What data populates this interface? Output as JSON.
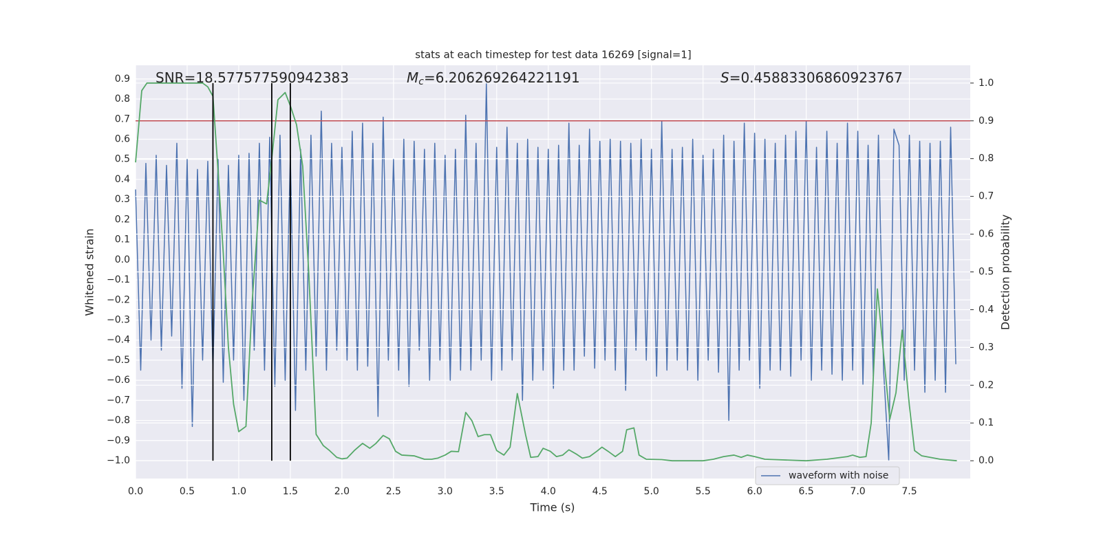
{
  "chart_data": {
    "type": "line",
    "title": "stats at each timestep for test data 16269 [signal=1]",
    "xlabel": "Time (s)",
    "ylabel": "Whitened strain",
    "y2label": "Detection probability",
    "annotations": [
      {
        "symbol": "SNR",
        "italic": false,
        "text": "=18.577577590942383"
      },
      {
        "symbol": "M",
        "subscript": "c",
        "italic": true,
        "text": "=6.206269264221191"
      },
      {
        "symbol": "S",
        "italic": true,
        "text": "=0.45883306860923767"
      }
    ],
    "xlim": [
      0,
      8.09
    ],
    "ylim": [
      -1.089,
      0.968
    ],
    "y2lim": [
      -0.047,
      1.047
    ],
    "xticks": [
      {
        "value": 0,
        "label": "0.0"
      },
      0.5,
      {
        "value": 1,
        "label": "1.0"
      },
      1.5,
      {
        "value": 2,
        "label": "2.0"
      },
      2.5,
      {
        "value": 3,
        "label": "3.0"
      },
      3.5,
      {
        "value": 4,
        "label": "4.0"
      },
      4.5,
      {
        "value": 5,
        "label": "5.0"
      },
      5.5,
      {
        "value": 6,
        "label": "6.0"
      },
      6.5,
      {
        "value": 7,
        "label": "7.0"
      },
      7.5
    ],
    "yticks": [
      0.9,
      0.8,
      0.7,
      0.6,
      0.5,
      0.4,
      0.3,
      0.2,
      0.1,
      {
        "value": 0,
        "label": "0.0"
      },
      {
        "value": -0.1,
        "label": "−0.1"
      },
      {
        "value": -0.2,
        "label": "−0.2"
      },
      {
        "value": -0.3,
        "label": "−0.3"
      },
      {
        "value": -0.4,
        "label": "−0.4"
      },
      {
        "value": -0.5,
        "label": "−0.5"
      },
      {
        "value": -0.6,
        "label": "−0.6"
      },
      {
        "value": -0.7,
        "label": "−0.7"
      },
      {
        "value": -0.8,
        "label": "−0.8"
      },
      {
        "value": -0.9,
        "label": "−0.9"
      },
      {
        "value": -1,
        "label": "−1.0"
      }
    ],
    "y2ticks": [
      {
        "value": 0,
        "label": "0.0"
      },
      0.1,
      0.2,
      0.3,
      0.4,
      0.5,
      0.6,
      0.7,
      0.8,
      0.9,
      {
        "value": 1,
        "label": "1.0"
      }
    ],
    "grid": true,
    "legend": "lower right",
    "hline": {
      "axis": "y2",
      "value": 0.9,
      "color": "#c44e52"
    },
    "vlines": {
      "x": [
        0.75,
        1.32,
        1.5
      ],
      "axis": "y2",
      "ymin": 0,
      "ymax": 1,
      "color": "#000000"
    },
    "series": [
      {
        "name": "waveform with noise",
        "color": "#4c72b0",
        "x": [
          0,
          0.05,
          0.1,
          0.15,
          0.2,
          0.25,
          0.3,
          0.35,
          0.4,
          0.45,
          0.5,
          0.55,
          0.6,
          0.65,
          0.7,
          0.75,
          0.8,
          0.85,
          0.9,
          0.95,
          1,
          1.05,
          1.1,
          1.15,
          1.2,
          1.25,
          1.3,
          1.35,
          1.4,
          1.45,
          1.5,
          1.55,
          1.6,
          1.65,
          1.7,
          1.75,
          1.8,
          1.85,
          1.9,
          1.95,
          2,
          2.05,
          2.1,
          2.15,
          2.2,
          2.25,
          2.3,
          2.35,
          2.4,
          2.45,
          2.5,
          2.55,
          2.6,
          2.65,
          2.7,
          2.75,
          2.8,
          2.85,
          2.9,
          2.95,
          3,
          3.05,
          3.1,
          3.15,
          3.2,
          3.25,
          3.3,
          3.35,
          3.4,
          3.45,
          3.5,
          3.55,
          3.6,
          3.65,
          3.7,
          3.75,
          3.8,
          3.85,
          3.9,
          3.95,
          4,
          4.05,
          4.1,
          4.15,
          4.2,
          4.25,
          4.3,
          4.35,
          4.4,
          4.45,
          4.5,
          4.55,
          4.6,
          4.65,
          4.7,
          4.75,
          4.8,
          4.85,
          4.9,
          4.95,
          5,
          5.05,
          5.1,
          5.15,
          5.2,
          5.25,
          5.3,
          5.35,
          5.4,
          5.45,
          5.5,
          5.55,
          5.6,
          5.65,
          5.7,
          5.75,
          5.8,
          5.85,
          5.9,
          5.95,
          6,
          6.05,
          6.1,
          6.15,
          6.2,
          6.25,
          6.3,
          6.35,
          6.4,
          6.45,
          6.5,
          6.55,
          6.6,
          6.65,
          6.7,
          6.75,
          6.8,
          6.85,
          6.9,
          6.95,
          7,
          7.05,
          7.1,
          7.15,
          7.2,
          7.25,
          7.3,
          7.35,
          7.4,
          7.45,
          7.5,
          7.55,
          7.6,
          7.65,
          7.7,
          7.75,
          7.8,
          7.85,
          7.9,
          7.95
        ],
        "values": [
          0.35,
          -0.55,
          0.48,
          -0.4,
          0.52,
          -0.45,
          0.47,
          -0.38,
          0.58,
          -0.64,
          0.5,
          -0.83,
          0.45,
          -0.5,
          0.49,
          -0.55,
          0.5,
          -0.61,
          0.47,
          -0.5,
          0.52,
          -0.7,
          0.53,
          -0.45,
          0.58,
          -0.55,
          0.61,
          -0.63,
          0.62,
          -0.6,
          0.52,
          -0.75,
          0.55,
          -0.55,
          0.62,
          -0.48,
          0.74,
          -0.55,
          0.58,
          -0.45,
          0.56,
          -0.5,
          0.64,
          -0.55,
          0.68,
          -0.53,
          0.58,
          -0.78,
          0.71,
          -0.5,
          0.5,
          -0.55,
          0.6,
          -0.63,
          0.59,
          -0.45,
          0.55,
          -0.6,
          0.58,
          -0.5,
          0.52,
          -0.6,
          0.55,
          -0.55,
          0.72,
          -0.55,
          0.58,
          -0.5,
          0.88,
          -0.6,
          0.56,
          -0.55,
          0.66,
          -0.5,
          0.58,
          -0.7,
          0.6,
          -0.6,
          0.56,
          -0.55,
          0.55,
          -0.64,
          0.57,
          -0.55,
          0.68,
          -0.55,
          0.57,
          -0.48,
          0.65,
          -0.54,
          0.59,
          -0.5,
          0.6,
          -0.55,
          0.59,
          -0.65,
          0.58,
          -0.45,
          0.6,
          -0.5,
          0.55,
          -0.58,
          0.69,
          -0.55,
          0.55,
          -0.5,
          0.56,
          -0.55,
          0.6,
          -0.6,
          0.52,
          -0.5,
          0.55,
          -0.56,
          0.62,
          -0.8,
          0.59,
          -0.55,
          0.68,
          -0.5,
          0.63,
          -0.64,
          0.6,
          -0.55,
          0.58,
          -0.55,
          0.62,
          -0.58,
          0.64,
          -0.5,
          0.69,
          -0.6,
          0.56,
          -0.55,
          0.64,
          -0.57,
          0.58,
          -0.6,
          0.68,
          -0.55,
          0.64,
          -0.62,
          0.57,
          -0.58,
          0.62,
          -0.55,
          -1.0,
          0.65,
          0.57,
          -0.6,
          0.62,
          -0.55,
          0.59,
          -0.66,
          0.58,
          -0.6,
          0.59,
          -0.66,
          0.66,
          -0.52
        ]
      },
      {
        "color": "#55a868",
        "axis": "y2",
        "x": [
          0,
          0.06,
          0.11,
          0.3,
          0.65,
          0.7,
          0.75,
          0.8,
          0.85,
          0.9,
          0.95,
          1,
          1.07,
          1.13,
          1.2,
          1.27,
          1.32,
          1.38,
          1.45,
          1.5,
          1.56,
          1.62,
          1.68,
          1.75,
          1.82,
          1.88,
          1.95,
          2,
          2.05,
          2.12,
          2.2,
          2.27,
          2.33,
          2.4,
          2.46,
          2.52,
          2.58,
          2.7,
          2.8,
          2.87,
          2.93,
          3,
          3.06,
          3.13,
          3.2,
          3.26,
          3.32,
          3.38,
          3.44,
          3.5,
          3.57,
          3.63,
          3.7,
          3.78,
          3.83,
          3.9,
          3.95,
          4.02,
          4.08,
          4.14,
          4.2,
          4.27,
          4.33,
          4.4,
          4.47,
          4.52,
          4.58,
          4.65,
          4.72,
          4.76,
          4.83,
          4.88,
          4.95,
          5.1,
          5.2,
          5.5,
          5.6,
          5.7,
          5.8,
          5.87,
          5.93,
          6,
          6.1,
          6.5,
          6.7,
          6.9,
          6.95,
          7.02,
          7.08,
          7.13,
          7.19,
          7.24,
          7.31,
          7.37,
          7.43,
          7.5,
          7.55,
          7.62,
          7.8,
          7.96
        ],
        "values": [
          0.79,
          0.98,
          1.0,
          1.0,
          1.0,
          0.99,
          0.965,
          0.765,
          0.55,
          0.3,
          0.15,
          0.077,
          0.091,
          0.42,
          0.69,
          0.68,
          0.8,
          0.956,
          0.975,
          0.94,
          0.89,
          0.78,
          0.49,
          0.07,
          0.04,
          0.027,
          0.009,
          0.005,
          0.007,
          0.027,
          0.046,
          0.033,
          0.046,
          0.067,
          0.058,
          0.025,
          0.015,
          0.013,
          0.004,
          0.004,
          0.007,
          0.015,
          0.025,
          0.024,
          0.128,
          0.106,
          0.064,
          0.069,
          0.069,
          0.027,
          0.015,
          0.036,
          0.178,
          0.069,
          0.009,
          0.011,
          0.033,
          0.025,
          0.011,
          0.015,
          0.029,
          0.018,
          0.007,
          0.011,
          0.025,
          0.036,
          0.025,
          0.011,
          0.025,
          0.082,
          0.087,
          0.015,
          0.004,
          0.003,
          0.0,
          0.0,
          0.004,
          0.011,
          0.015,
          0.009,
          0.015,
          0.011,
          0.004,
          0.0,
          0.004,
          0.011,
          0.015,
          0.009,
          0.011,
          0.1,
          0.455,
          0.31,
          0.11,
          0.18,
          0.346,
          0.146,
          0.027,
          0.013,
          0.004,
          0.0
        ]
      }
    ]
  }
}
